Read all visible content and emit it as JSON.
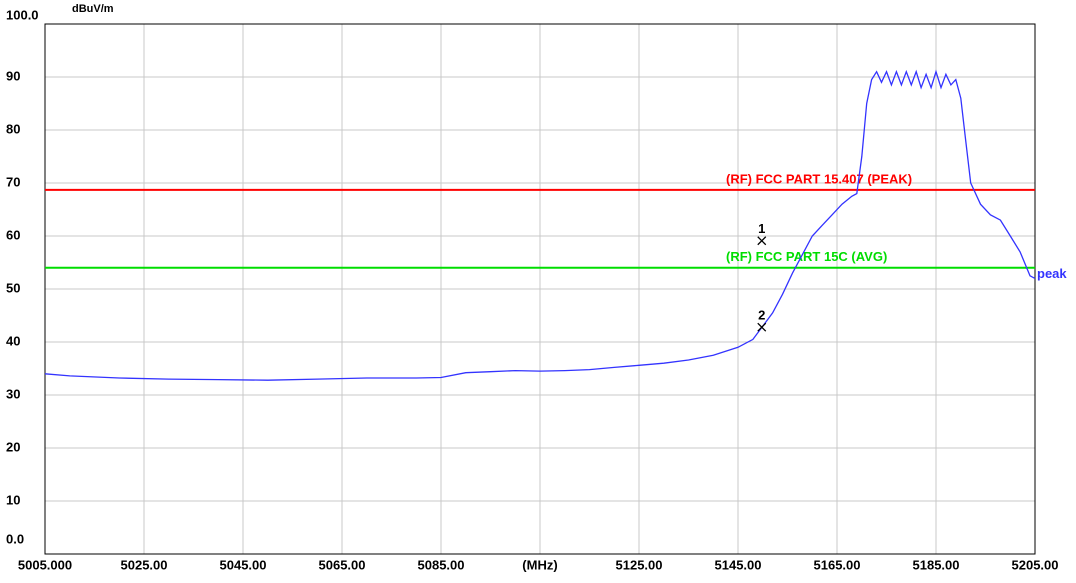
{
  "chart_data": {
    "type": "line",
    "y_unit": "dBuV/m",
    "xlim": [
      5005,
      5205
    ],
    "xticks": [
      {
        "value": 5005,
        "label": "5005.000"
      },
      {
        "value": 5025,
        "label": "5025.00"
      },
      {
        "value": 5045,
        "label": "5045.00"
      },
      {
        "value": 5065,
        "label": "5065.00"
      },
      {
        "value": 5085,
        "label": "5085.00"
      },
      {
        "value": 5105,
        "label": "(MHz)"
      },
      {
        "value": 5125,
        "label": "5125.00"
      },
      {
        "value": 5145,
        "label": "5145.00"
      },
      {
        "value": 5165,
        "label": "5165.00"
      },
      {
        "value": 5185,
        "label": "5185.00"
      },
      {
        "value": 5205,
        "label": "5205.00"
      }
    ],
    "ylim": [
      0,
      100
    ],
    "yticks": [
      {
        "value": 0,
        "label": "0.0"
      },
      10,
      20,
      30,
      40,
      50,
      60,
      70,
      80,
      90,
      {
        "value": 100,
        "label": "100.0"
      }
    ],
    "grid": true,
    "limit_lines": [
      {
        "name": "(RF) FCC PART 15.407  (PEAK)",
        "color": "#ff0000",
        "value": 68.7
      },
      {
        "name": "(RF) FCC PART 15C (AVG)",
        "color": "#00dd00",
        "value": 54.0
      }
    ],
    "markers": [
      {
        "label": "1",
        "x": 5149.8,
        "y": 59.1
      },
      {
        "label": "2",
        "x": 5149.8,
        "y": 42.8
      }
    ],
    "series": [
      {
        "name": "peak",
        "color": "#3333ff",
        "x": [
          5005,
          5010,
          5020,
          5030,
          5040,
          5050,
          5060,
          5070,
          5080,
          5085,
          5090,
          5095,
          5100,
          5105,
          5110,
          5115,
          5120,
          5125,
          5130,
          5135,
          5140,
          5145,
          5148,
          5150,
          5152,
          5154,
          5156,
          5158,
          5160,
          5162,
          5164,
          5166,
          5168,
          5169,
          5170,
          5171,
          5172,
          5173,
          5174,
          5175,
          5176,
          5177,
          5178,
          5179,
          5180,
          5181,
          5182,
          5183,
          5184,
          5185,
          5186,
          5187,
          5188,
          5189,
          5190,
          5191,
          5192,
          5194,
          5196,
          5198,
          5200,
          5202,
          5204,
          5205
        ],
        "values": [
          34.0,
          33.6,
          33.2,
          33.0,
          32.9,
          32.8,
          33.0,
          33.2,
          33.2,
          33.3,
          34.2,
          34.4,
          34.6,
          34.5,
          34.6,
          34.8,
          35.2,
          35.6,
          36.0,
          36.6,
          37.5,
          39.0,
          40.5,
          43.0,
          45.5,
          49,
          53,
          56.5,
          60,
          62,
          64,
          66,
          67.5,
          68,
          75,
          85,
          89.5,
          91.0,
          89,
          91,
          88.5,
          91,
          88.5,
          91,
          88.5,
          91,
          88,
          90.5,
          88,
          91,
          88,
          90.5,
          88.5,
          89.5,
          86,
          78,
          70,
          66,
          64,
          63,
          60,
          57,
          52.5,
          52
        ]
      }
    ]
  }
}
